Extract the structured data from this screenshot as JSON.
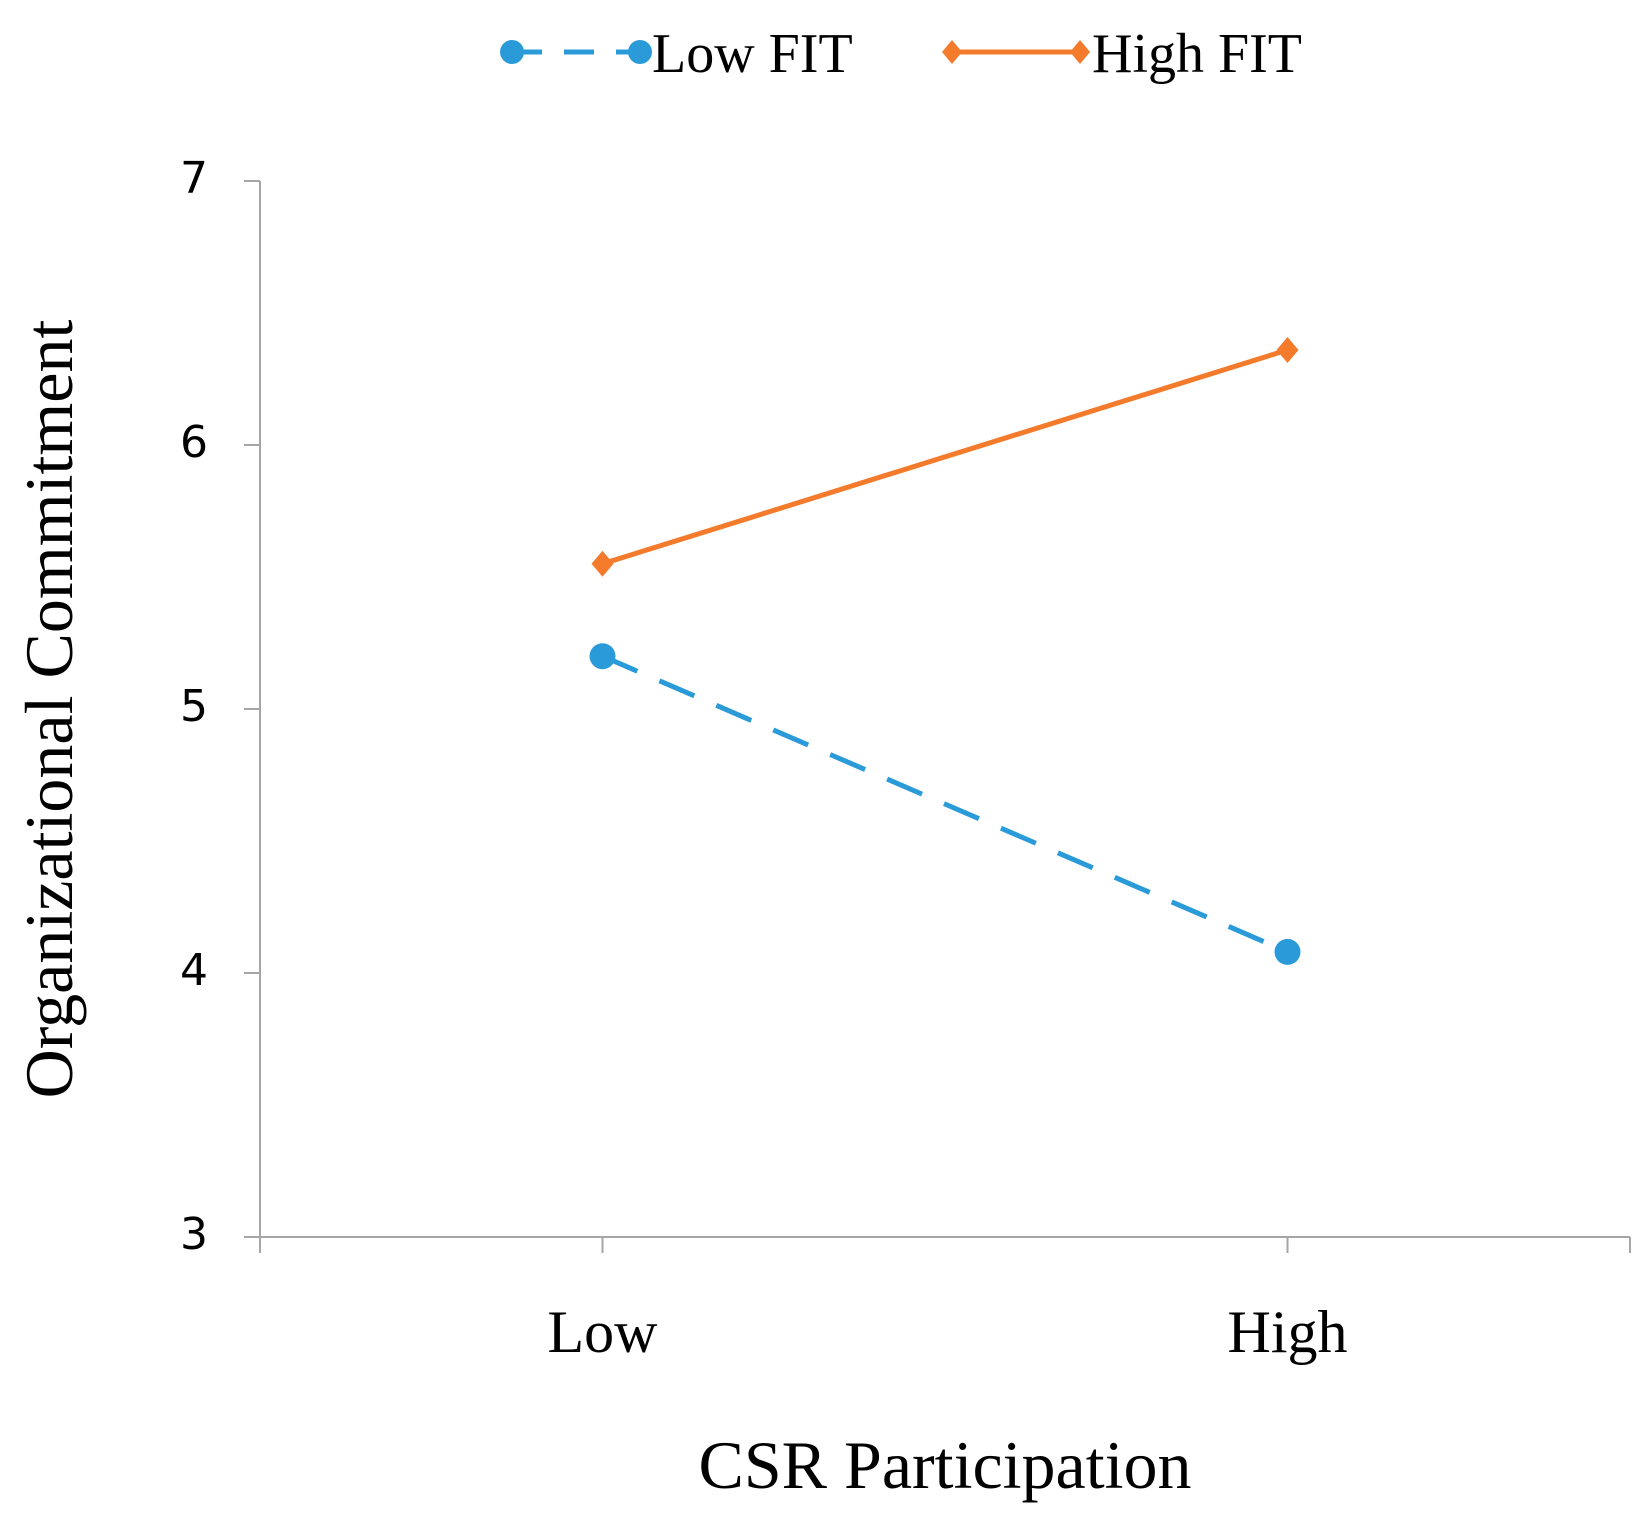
{
  "chart_data": {
    "type": "line",
    "title": "",
    "xlabel": "CSR Participation",
    "ylabel": "Organizational Commitment",
    "categories": [
      "Low",
      "High"
    ],
    "ylim": [
      3,
      7
    ],
    "yticks": [
      "3",
      "4",
      "5",
      "6",
      "7"
    ],
    "grid": false,
    "legend_position": "top",
    "series": [
      {
        "name": "Low FIT",
        "values": [
          5.2,
          4.08
        ],
        "color": "#2a9bd8",
        "line_style": "dashed",
        "marker": "circle"
      },
      {
        "name": "High FIT",
        "values": [
          5.55,
          6.36
        ],
        "color": "#f47b2b",
        "line_style": "solid",
        "marker": "diamond"
      }
    ]
  }
}
